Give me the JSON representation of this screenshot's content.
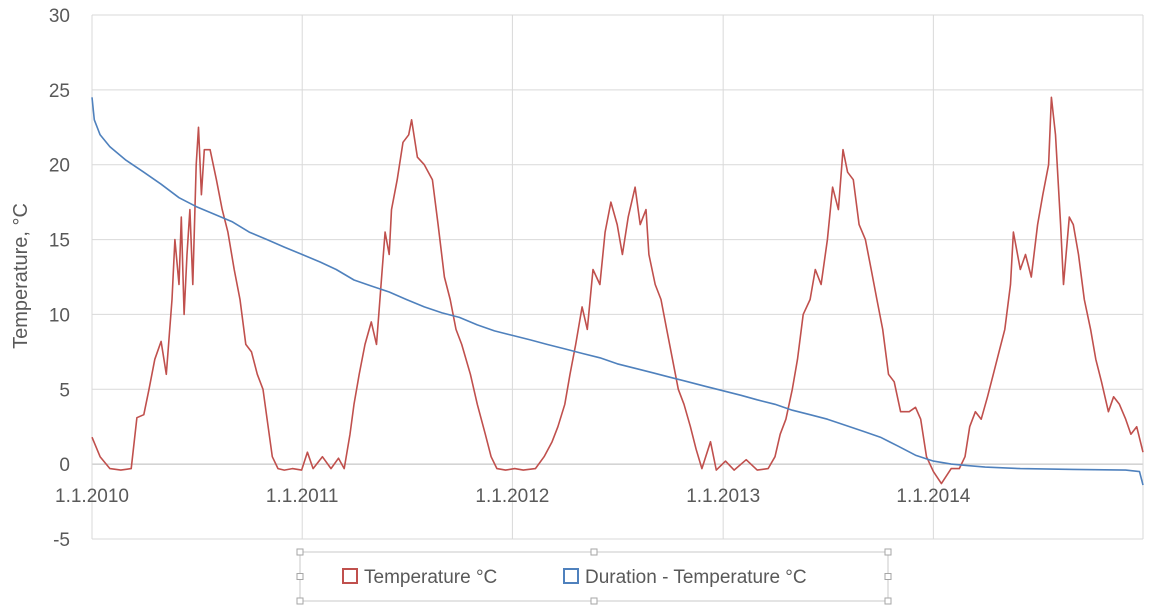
{
  "chart_data": {
    "type": "line",
    "ylabel": "Temperature, °C",
    "ylim": [
      -5,
      30
    ],
    "yticks": [
      -5,
      0,
      5,
      10,
      15,
      20,
      25,
      30
    ],
    "xlim": [
      "2010-01-01",
      "2014-12-31"
    ],
    "xticks": [
      {
        "date": "2010-01-01",
        "label": "1.1.2010"
      },
      {
        "date": "2011-01-01",
        "label": "1.1.2011"
      },
      {
        "date": "2012-01-01",
        "label": "1.1.2012"
      },
      {
        "date": "2013-01-01",
        "label": "1.1.2013"
      },
      {
        "date": "2014-01-01",
        "label": "1.1.2014"
      }
    ],
    "grid": true,
    "legend_position": "bottom",
    "series": [
      {
        "name": "Temperature °C",
        "color": "#c0504d",
        "points": [
          [
            "2010-01-01",
            1.8
          ],
          [
            "2010-01-15",
            0.5
          ],
          [
            "2010-02-01",
            -0.3
          ],
          [
            "2010-02-20",
            -0.4
          ],
          [
            "2010-03-10",
            -0.3
          ],
          [
            "2010-03-20",
            3.1
          ],
          [
            "2010-04-01",
            3.3
          ],
          [
            "2010-04-10",
            5.0
          ],
          [
            "2010-04-20",
            7.0
          ],
          [
            "2010-05-01",
            8.2
          ],
          [
            "2010-05-10",
            6.0
          ],
          [
            "2010-05-20",
            11.0
          ],
          [
            "2010-05-25",
            15.0
          ],
          [
            "2010-06-01",
            12.0
          ],
          [
            "2010-06-05",
            16.5
          ],
          [
            "2010-06-10",
            10.0
          ],
          [
            "2010-06-15",
            14.0
          ],
          [
            "2010-06-20",
            17.0
          ],
          [
            "2010-06-25",
            12.0
          ],
          [
            "2010-07-01",
            20.0
          ],
          [
            "2010-07-05",
            22.5
          ],
          [
            "2010-07-10",
            18.0
          ],
          [
            "2010-07-15",
            21.0
          ],
          [
            "2010-07-25",
            21.0
          ],
          [
            "2010-08-05",
            19.0
          ],
          [
            "2010-08-15",
            17.0
          ],
          [
            "2010-08-25",
            15.5
          ],
          [
            "2010-09-05",
            13.0
          ],
          [
            "2010-09-15",
            11.0
          ],
          [
            "2010-09-25",
            8.0
          ],
          [
            "2010-10-05",
            7.5
          ],
          [
            "2010-10-15",
            6.0
          ],
          [
            "2010-10-25",
            5.0
          ],
          [
            "2010-11-01",
            3.0
          ],
          [
            "2010-11-10",
            0.5
          ],
          [
            "2010-11-20",
            -0.3
          ],
          [
            "2010-12-01",
            -0.4
          ],
          [
            "2010-12-15",
            -0.3
          ],
          [
            "2010-12-31",
            -0.4
          ],
          [
            "2011-01-10",
            0.8
          ],
          [
            "2011-01-20",
            -0.3
          ],
          [
            "2011-02-05",
            0.5
          ],
          [
            "2011-02-20",
            -0.3
          ],
          [
            "2011-03-05",
            0.4
          ],
          [
            "2011-03-15",
            -0.3
          ],
          [
            "2011-03-25",
            2.0
          ],
          [
            "2011-04-01",
            4.0
          ],
          [
            "2011-04-10",
            6.0
          ],
          [
            "2011-04-20",
            8.0
          ],
          [
            "2011-05-01",
            9.5
          ],
          [
            "2011-05-10",
            8.0
          ],
          [
            "2011-05-20",
            13.0
          ],
          [
            "2011-05-25",
            15.5
          ],
          [
            "2011-06-01",
            14.0
          ],
          [
            "2011-06-05",
            17.0
          ],
          [
            "2011-06-15",
            19.0
          ],
          [
            "2011-06-25",
            21.5
          ],
          [
            "2011-07-05",
            22.0
          ],
          [
            "2011-07-10",
            23.0
          ],
          [
            "2011-07-20",
            20.5
          ],
          [
            "2011-08-01",
            20.0
          ],
          [
            "2011-08-15",
            19.0
          ],
          [
            "2011-08-25",
            16.0
          ],
          [
            "2011-09-05",
            12.5
          ],
          [
            "2011-09-15",
            11.0
          ],
          [
            "2011-09-25",
            9.0
          ],
          [
            "2011-10-05",
            8.0
          ],
          [
            "2011-10-20",
            6.0
          ],
          [
            "2011-11-01",
            4.0
          ],
          [
            "2011-11-15",
            2.0
          ],
          [
            "2011-11-25",
            0.5
          ],
          [
            "2011-12-05",
            -0.3
          ],
          [
            "2011-12-20",
            -0.4
          ],
          [
            "2012-01-05",
            -0.3
          ],
          [
            "2012-01-20",
            -0.4
          ],
          [
            "2012-02-10",
            -0.3
          ],
          [
            "2012-02-25",
            0.5
          ],
          [
            "2012-03-10",
            1.5
          ],
          [
            "2012-03-20",
            2.5
          ],
          [
            "2012-04-01",
            4.0
          ],
          [
            "2012-04-10",
            6.0
          ],
          [
            "2012-04-20",
            8.0
          ],
          [
            "2012-05-01",
            10.5
          ],
          [
            "2012-05-10",
            9.0
          ],
          [
            "2012-05-20",
            13.0
          ],
          [
            "2012-06-01",
            12.0
          ],
          [
            "2012-06-10",
            15.5
          ],
          [
            "2012-06-20",
            17.5
          ],
          [
            "2012-07-01",
            16.0
          ],
          [
            "2012-07-10",
            14.0
          ],
          [
            "2012-07-20",
            16.5
          ],
          [
            "2012-08-01",
            18.5
          ],
          [
            "2012-08-10",
            16.0
          ],
          [
            "2012-08-20",
            17.0
          ],
          [
            "2012-08-25",
            14.0
          ],
          [
            "2012-09-05",
            12.0
          ],
          [
            "2012-09-15",
            11.0
          ],
          [
            "2012-09-25",
            9.0
          ],
          [
            "2012-10-05",
            7.0
          ],
          [
            "2012-10-15",
            5.0
          ],
          [
            "2012-10-25",
            4.0
          ],
          [
            "2012-11-05",
            2.5
          ],
          [
            "2012-11-15",
            1.0
          ],
          [
            "2012-11-25",
            -0.3
          ],
          [
            "2012-12-10",
            1.5
          ],
          [
            "2012-12-20",
            -0.4
          ],
          [
            "2013-01-05",
            0.2
          ],
          [
            "2013-01-20",
            -0.4
          ],
          [
            "2013-02-10",
            0.3
          ],
          [
            "2013-03-01",
            -0.4
          ],
          [
            "2013-03-20",
            -0.3
          ],
          [
            "2013-04-01",
            0.5
          ],
          [
            "2013-04-10",
            2.0
          ],
          [
            "2013-04-20",
            3.0
          ],
          [
            "2013-05-01",
            5.0
          ],
          [
            "2013-05-10",
            7.0
          ],
          [
            "2013-05-20",
            10.0
          ],
          [
            "2013-06-01",
            11.0
          ],
          [
            "2013-06-10",
            13.0
          ],
          [
            "2013-06-20",
            12.0
          ],
          [
            "2013-07-01",
            15.0
          ],
          [
            "2013-07-10",
            18.5
          ],
          [
            "2013-07-20",
            17.0
          ],
          [
            "2013-07-28",
            21.0
          ],
          [
            "2013-08-05",
            19.5
          ],
          [
            "2013-08-15",
            19.0
          ],
          [
            "2013-08-25",
            16.0
          ],
          [
            "2013-09-05",
            15.0
          ],
          [
            "2013-09-15",
            13.0
          ],
          [
            "2013-09-25",
            11.0
          ],
          [
            "2013-10-05",
            9.0
          ],
          [
            "2013-10-15",
            6.0
          ],
          [
            "2013-10-25",
            5.5
          ],
          [
            "2013-11-05",
            3.5
          ],
          [
            "2013-11-20",
            3.5
          ],
          [
            "2013-12-01",
            3.8
          ],
          [
            "2013-12-10",
            3.0
          ],
          [
            "2013-12-20",
            0.5
          ],
          [
            "2014-01-01",
            -0.5
          ],
          [
            "2014-01-15",
            -1.3
          ],
          [
            "2014-02-01",
            -0.3
          ],
          [
            "2014-02-15",
            -0.3
          ],
          [
            "2014-02-25",
            0.5
          ],
          [
            "2014-03-05",
            2.5
          ],
          [
            "2014-03-15",
            3.5
          ],
          [
            "2014-03-25",
            3.0
          ],
          [
            "2014-04-05",
            4.5
          ],
          [
            "2014-04-15",
            6.0
          ],
          [
            "2014-04-25",
            7.5
          ],
          [
            "2014-05-05",
            9.0
          ],
          [
            "2014-05-15",
            12.0
          ],
          [
            "2014-05-20",
            15.5
          ],
          [
            "2014-06-01",
            13.0
          ],
          [
            "2014-06-10",
            14.0
          ],
          [
            "2014-06-20",
            12.5
          ],
          [
            "2014-07-01",
            16.0
          ],
          [
            "2014-07-10",
            18.0
          ],
          [
            "2014-07-20",
            20.0
          ],
          [
            "2014-07-25",
            24.5
          ],
          [
            "2014-08-01",
            22.0
          ],
          [
            "2014-08-10",
            16.0
          ],
          [
            "2014-08-15",
            12.0
          ],
          [
            "2014-08-25",
            16.5
          ],
          [
            "2014-09-01",
            16.0
          ],
          [
            "2014-09-10",
            14.0
          ],
          [
            "2014-09-20",
            11.0
          ],
          [
            "2014-10-01",
            9.0
          ],
          [
            "2014-10-10",
            7.0
          ],
          [
            "2014-10-20",
            5.5
          ],
          [
            "2014-11-01",
            3.5
          ],
          [
            "2014-11-10",
            4.5
          ],
          [
            "2014-11-20",
            4.0
          ],
          [
            "2014-12-01",
            3.0
          ],
          [
            "2014-12-10",
            2.0
          ],
          [
            "2014-12-20",
            2.5
          ],
          [
            "2014-12-31",
            0.8
          ]
        ]
      },
      {
        "name": "Duration - Temperature °C",
        "color": "#4f81bd",
        "points": [
          [
            "2010-01-01",
            24.5
          ],
          [
            "2010-01-05",
            23.0
          ],
          [
            "2010-01-15",
            22.0
          ],
          [
            "2010-02-01",
            21.2
          ],
          [
            "2010-03-01",
            20.3
          ],
          [
            "2010-04-01",
            19.5
          ],
          [
            "2010-05-01",
            18.7
          ],
          [
            "2010-06-01",
            17.8
          ],
          [
            "2010-07-01",
            17.2
          ],
          [
            "2010-08-01",
            16.7
          ],
          [
            "2010-09-01",
            16.2
          ],
          [
            "2010-10-01",
            15.5
          ],
          [
            "2010-11-01",
            15.0
          ],
          [
            "2010-12-01",
            14.5
          ],
          [
            "2011-01-01",
            14.0
          ],
          [
            "2011-02-01",
            13.5
          ],
          [
            "2011-03-01",
            13.0
          ],
          [
            "2011-04-01",
            12.3
          ],
          [
            "2011-05-01",
            11.9
          ],
          [
            "2011-06-01",
            11.5
          ],
          [
            "2011-07-01",
            11.0
          ],
          [
            "2011-08-01",
            10.5
          ],
          [
            "2011-09-01",
            10.1
          ],
          [
            "2011-10-01",
            9.8
          ],
          [
            "2011-11-01",
            9.3
          ],
          [
            "2011-12-01",
            8.9
          ],
          [
            "2012-01-01",
            8.6
          ],
          [
            "2012-02-01",
            8.3
          ],
          [
            "2012-03-01",
            8.0
          ],
          [
            "2012-04-01",
            7.7
          ],
          [
            "2012-05-01",
            7.4
          ],
          [
            "2012-06-01",
            7.1
          ],
          [
            "2012-07-01",
            6.7
          ],
          [
            "2012-08-01",
            6.4
          ],
          [
            "2012-09-01",
            6.1
          ],
          [
            "2012-10-01",
            5.8
          ],
          [
            "2012-11-01",
            5.5
          ],
          [
            "2012-12-01",
            5.2
          ],
          [
            "2013-01-01",
            4.9
          ],
          [
            "2013-02-01",
            4.6
          ],
          [
            "2013-03-01",
            4.3
          ],
          [
            "2013-04-01",
            4.0
          ],
          [
            "2013-05-01",
            3.6
          ],
          [
            "2013-06-01",
            3.3
          ],
          [
            "2013-07-01",
            3.0
          ],
          [
            "2013-08-01",
            2.6
          ],
          [
            "2013-09-01",
            2.2
          ],
          [
            "2013-10-01",
            1.8
          ],
          [
            "2013-11-01",
            1.2
          ],
          [
            "2013-12-01",
            0.6
          ],
          [
            "2014-01-01",
            0.2
          ],
          [
            "2014-02-01",
            0.0
          ],
          [
            "2014-03-01",
            -0.1
          ],
          [
            "2014-04-01",
            -0.2
          ],
          [
            "2014-06-01",
            -0.3
          ],
          [
            "2014-09-01",
            -0.35
          ],
          [
            "2014-12-01",
            -0.4
          ],
          [
            "2014-12-25",
            -0.5
          ],
          [
            "2014-12-31",
            -1.4
          ]
        ]
      }
    ]
  }
}
